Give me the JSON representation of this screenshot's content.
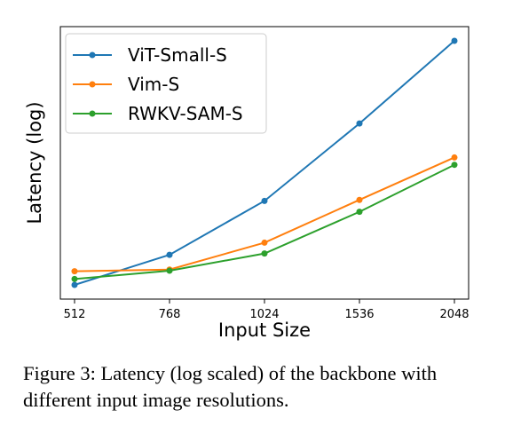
{
  "chart_data": {
    "type": "line",
    "x_categories": [
      "512",
      "768",
      "1024",
      "1536",
      "2048"
    ],
    "xlabel": "Input Size",
    "ylabel": "Latency (log)",
    "yscale": "log",
    "y_ticks_shown": false,
    "grid": false,
    "legend_position": "top-left",
    "series": [
      {
        "name": "ViT-Small-S",
        "color": "#1f77b4",
        "values": [
          1.0,
          1.55,
          3.4,
          10.5,
          35.0
        ]
      },
      {
        "name": "Vim-S",
        "color": "#ff7f0e",
        "values": [
          1.22,
          1.25,
          1.85,
          3.45,
          6.4
        ]
      },
      {
        "name": "RWKV-SAM-S",
        "color": "#2ca02c",
        "values": [
          1.09,
          1.23,
          1.58,
          2.9,
          5.75
        ]
      }
    ]
  },
  "caption": {
    "label": "Figure 3:",
    "text": "Latency (log scaled) of the backbone with different input image resolutions."
  }
}
